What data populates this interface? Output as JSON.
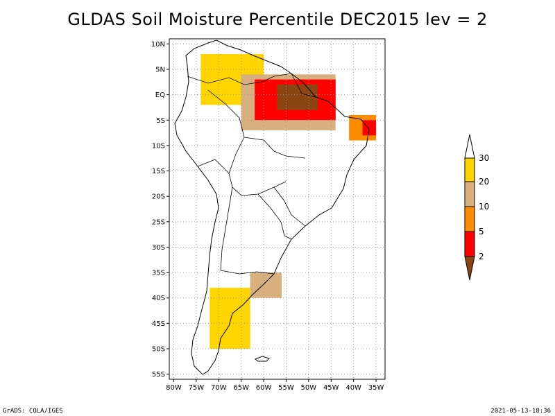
{
  "title": "GLDAS Soil Moisture Percentile DEC2015 lev = 2",
  "footer_left": "GrADS: COLA/IGES",
  "footer_right": "2021-05-13-18:36",
  "map": {
    "lat_labels": [
      "10N",
      "5N",
      "EQ",
      "5S",
      "10S",
      "15S",
      "20S",
      "25S",
      "30S",
      "35S",
      "40S",
      "45S",
      "50S",
      "55S"
    ],
    "lat_values": [
      10,
      5,
      0,
      -5,
      -10,
      -15,
      -20,
      -25,
      -30,
      -35,
      -40,
      -45,
      -50,
      -55
    ],
    "lon_labels": [
      "80W",
      "75W",
      "70W",
      "65W",
      "60W",
      "55W",
      "50W",
      "45W",
      "40W",
      "35W"
    ],
    "lon_values": [
      -80,
      -75,
      -70,
      -65,
      -60,
      -55,
      -50,
      -45,
      -40,
      -35
    ],
    "lon_range": [
      -81,
      -33
    ],
    "lat_range": [
      -56,
      11
    ],
    "grid": "dotted"
  },
  "colorbar": {
    "labels": [
      "30",
      "20",
      "10",
      "5",
      "2"
    ],
    "colors": {
      "above30": "#ffffff",
      "c20_30": "#ffd500",
      "c10_20": "#d8b080",
      "c5_10": "#ff8c00",
      "c2_5": "#ff0000",
      "below2": "#8b4513"
    }
  },
  "regions": [
    {
      "name": "colombia-yellow",
      "color": "#ffd500",
      "lon": [
        -74,
        -60
      ],
      "lat": [
        -2,
        8
      ]
    },
    {
      "name": "amazon-tan",
      "color": "#d8b080",
      "lon": [
        -65,
        -44
      ],
      "lat": [
        -7,
        4
      ]
    },
    {
      "name": "amazon-red",
      "color": "#ff0000",
      "lon": [
        -62,
        -44
      ],
      "lat": [
        -5,
        3
      ]
    },
    {
      "name": "amazon-brown",
      "color": "#8b4513",
      "lon": [
        -57,
        -48
      ],
      "lat": [
        -3,
        2
      ]
    },
    {
      "name": "northeast-orange",
      "color": "#ff8c00",
      "lon": [
        -41,
        -35
      ],
      "lat": [
        -9,
        -4
      ]
    },
    {
      "name": "northeast-red",
      "color": "#ff0000",
      "lon": [
        -38,
        -35
      ],
      "lat": [
        -8,
        -5
      ]
    },
    {
      "name": "patagonia-yellow",
      "color": "#ffd500",
      "lon": [
        -72,
        -63
      ],
      "lat": [
        -50,
        -38
      ]
    },
    {
      "name": "pampas-tan",
      "color": "#d8b080",
      "lon": [
        -63,
        -56
      ],
      "lat": [
        -40,
        -35
      ]
    }
  ]
}
